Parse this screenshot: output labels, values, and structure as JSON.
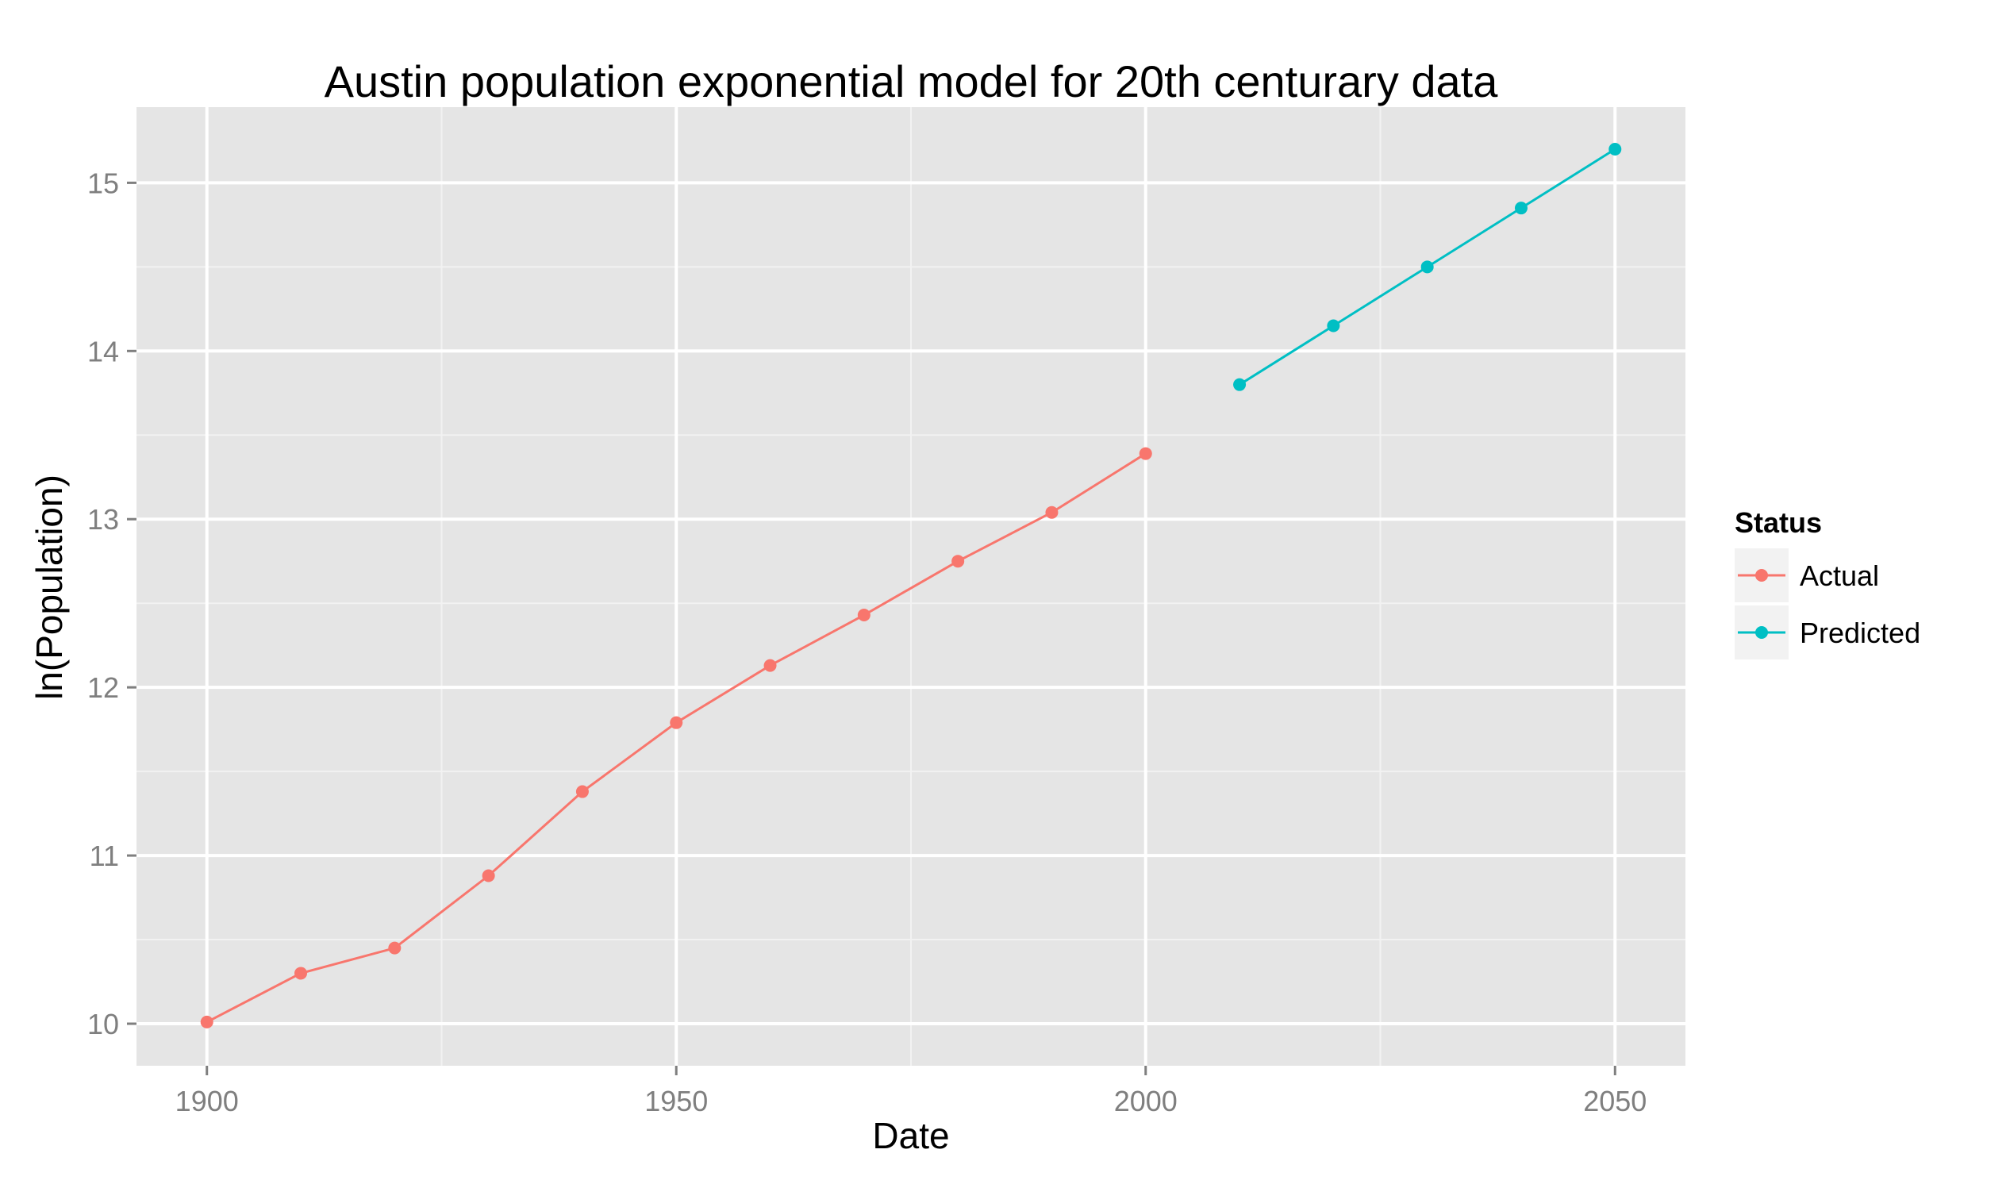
{
  "chart_data": {
    "type": "line",
    "title": "Austin population exponential model for 20th centurary data",
    "xlabel": "Date",
    "ylabel": "ln(Population)",
    "xlim": [
      1892.5,
      2057.5
    ],
    "ylim": [
      9.75,
      15.45
    ],
    "x_ticks": [
      1900,
      1950,
      2000,
      2050
    ],
    "y_ticks": [
      10,
      11,
      12,
      13,
      14,
      15
    ],
    "x_tick_labels": [
      "1900",
      "1950",
      "2000",
      "2050"
    ],
    "y_tick_labels": [
      "10",
      "11",
      "12",
      "13",
      "14",
      "15"
    ],
    "x_minor_ticks": [
      1925,
      1975,
      2025
    ],
    "y_minor_ticks": [
      10.5,
      11.5,
      12.5,
      13.5,
      14.5
    ],
    "grid": true,
    "legend": {
      "title": "Status",
      "placement": "right"
    },
    "series": [
      {
        "name": "Actual",
        "color": "#F8766D",
        "x": [
          1900,
          1910,
          1920,
          1930,
          1940,
          1950,
          1960,
          1970,
          1980,
          1990,
          2000
        ],
        "y": [
          10.01,
          10.3,
          10.45,
          10.88,
          11.38,
          11.79,
          12.13,
          12.43,
          12.75,
          13.04,
          13.39
        ]
      },
      {
        "name": "Predicted",
        "color": "#00BFC4",
        "x": [
          2010,
          2020,
          2030,
          2040,
          2050
        ],
        "y": [
          13.8,
          14.15,
          14.5,
          14.85,
          15.2
        ]
      }
    ],
    "colors": {
      "panel_background": "#E5E5E5",
      "grid_major": "#FFFFFF",
      "grid_minor": "#F2F2F2",
      "tick_text": "#7F7F7F",
      "legend_key_background": "#F2F2F2"
    }
  }
}
